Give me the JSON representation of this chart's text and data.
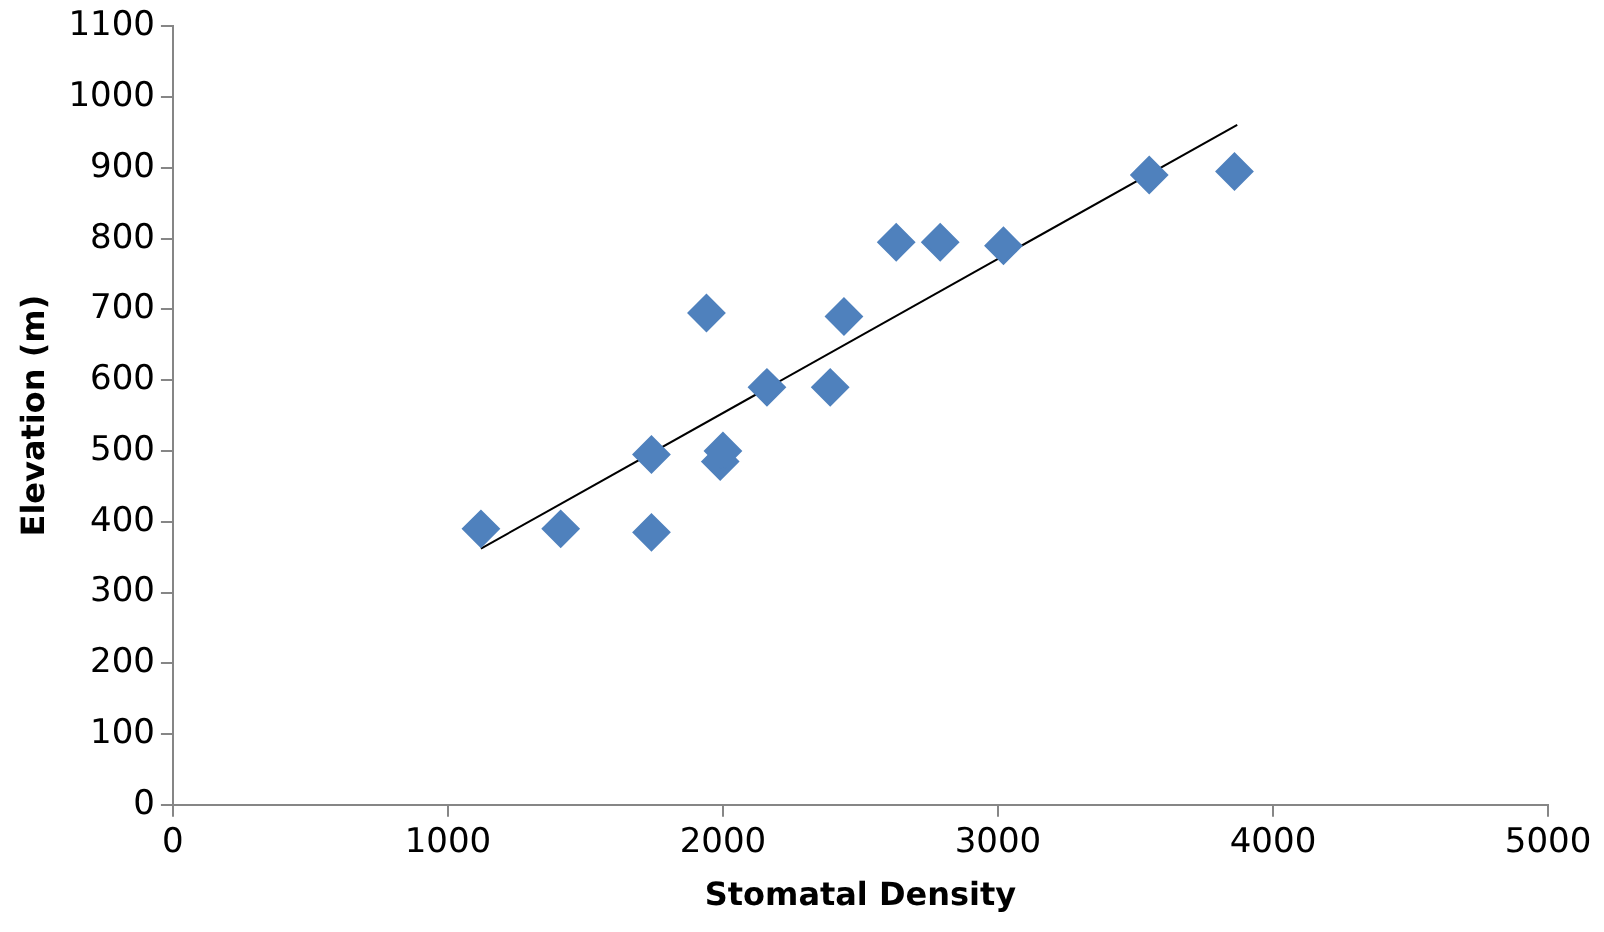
{
  "chart_data": {
    "type": "scatter",
    "xlabel": "Stomatal Density",
    "ylabel": "Elevation (m)",
    "xlim": [
      0,
      5000
    ],
    "xticks": [
      0,
      1000,
      2000,
      3000,
      4000,
      5000
    ],
    "ylim": [
      0,
      1100
    ],
    "yticks": [
      0,
      100,
      200,
      300,
      400,
      500,
      600,
      700,
      800,
      900,
      1000,
      1100
    ],
    "grid": false,
    "legend": false,
    "series": [
      {
        "type": "scatter",
        "marker": "diamond",
        "color": "#4f81bd",
        "x": [
          1120,
          1410,
          1740,
          1740,
          1940,
          1990,
          2000,
          2160,
          2390,
          2440,
          2630,
          2790,
          3020,
          3550,
          3860
        ],
        "values": [
          390,
          390,
          385,
          495,
          695,
          485,
          500,
          590,
          590,
          690,
          795,
          795,
          790,
          890,
          895
        ]
      },
      {
        "type": "line",
        "marker": "none",
        "color": "#000000",
        "x": [
          1120,
          3870
        ],
        "values": [
          362,
          961
        ]
      }
    ]
  }
}
